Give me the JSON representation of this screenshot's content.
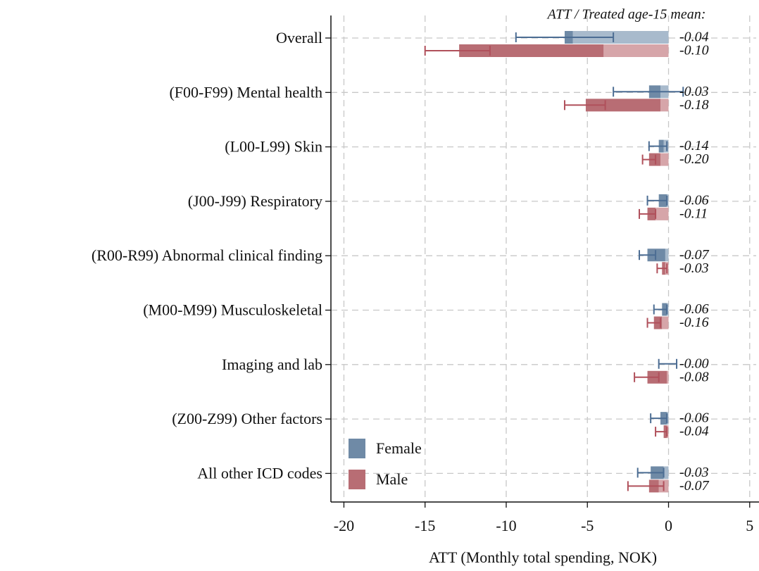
{
  "chart_data": {
    "type": "bar",
    "orientation": "horizontal",
    "annotation": "ATT / Treated age-15 mean:",
    "xlabel": "ATT (Monthly total spending, NOK)",
    "categories": [
      "Overall",
      "(F00-F99) Mental health",
      "(L00-L99) Skin",
      "(J00-J99) Respiratory",
      "(R00-R99) Abnormal clinical finding",
      "(M00-M99) Musculoskeletal",
      "Imaging and lab",
      "(Z00-Z99) Other factors",
      "All other ICD codes"
    ],
    "xlim": [
      -20.8,
      5.4
    ],
    "xticks": [
      -20,
      -15,
      -10,
      -5,
      0,
      5
    ],
    "grid": true,
    "legend": "lower left",
    "series": [
      {
        "name": "Female",
        "color": "#6f8aa6",
        "light_color": "#a8bacc",
        "error_color": "#4c6d93",
        "values": [
          -6.4,
          -1.2,
          -0.6,
          -0.6,
          -1.3,
          -0.4,
          0.0,
          -0.5,
          -1.1
        ],
        "base": [
          -5.9,
          -0.5,
          -0.3,
          -0.1,
          -0.2,
          -0.1,
          0.0,
          -0.1,
          -0.3
        ],
        "ci_low": [
          -9.4,
          -3.4,
          -1.2,
          -1.3,
          -1.8,
          -0.9,
          -0.6,
          -1.1,
          -1.9
        ],
        "ci_high": [
          -3.4,
          0.9,
          -0.1,
          -0.1,
          -0.8,
          -0.1,
          0.5,
          -0.1,
          -0.3
        ],
        "ratio_labels": [
          "-0.04",
          "-0.03",
          "-0.14",
          "-0.06",
          "-0.07",
          "-0.06",
          "-0.00",
          "-0.06",
          "-0.03"
        ]
      },
      {
        "name": "Male",
        "color": "#b86d74",
        "light_color": "#d6a5a9",
        "error_color": "#b0505b",
        "values": [
          -12.9,
          -5.1,
          -1.2,
          -1.3,
          -0.4,
          -0.9,
          -1.3,
          -0.3,
          -1.2
        ],
        "base": [
          -4.0,
          -0.5,
          -0.5,
          -0.8,
          -0.2,
          -0.4,
          -0.1,
          -0.1,
          -0.6
        ],
        "ci_low": [
          -15.0,
          -6.4,
          -1.6,
          -1.8,
          -0.7,
          -1.3,
          -2.1,
          -0.8,
          -2.5
        ],
        "ci_high": [
          -11.0,
          -3.9,
          -0.8,
          -0.8,
          -0.1,
          -0.5,
          -0.6,
          -0.1,
          -0.3
        ],
        "ratio_labels": [
          "-0.10",
          "-0.18",
          "-0.20",
          "-0.11",
          "-0.03",
          "-0.16",
          "-0.08",
          "-0.04",
          "-0.07"
        ]
      }
    ]
  }
}
